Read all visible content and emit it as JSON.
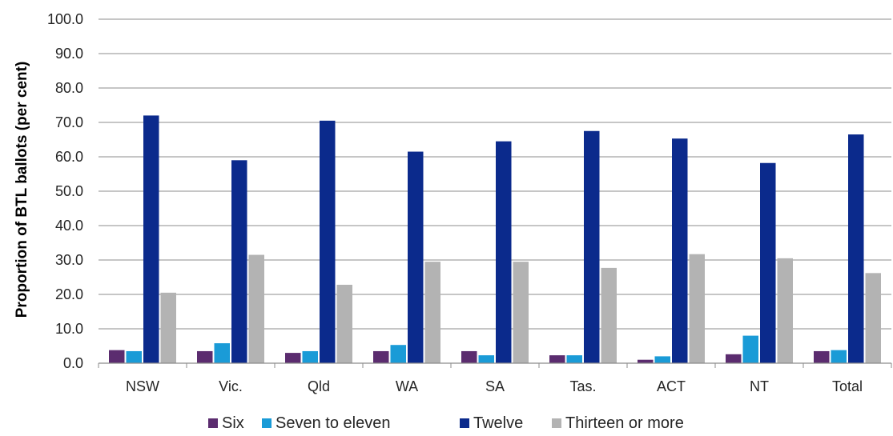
{
  "chart_data": {
    "type": "bar",
    "ylabel": "Proportion of BTL ballots (per cent)",
    "xlabel": "",
    "ylim": [
      0,
      100
    ],
    "yticks": [
      "0.0",
      "10.0",
      "20.0",
      "30.0",
      "40.0",
      "50.0",
      "60.0",
      "70.0",
      "80.0",
      "90.0",
      "100.0"
    ],
    "categories": [
      "NSW",
      "Vic.",
      "Qld",
      "WA",
      "SA",
      "Tas.",
      "ACT",
      "NT",
      "Total"
    ],
    "series": [
      {
        "name": "Six",
        "color": "#5b2c6f",
        "values": [
          3.8,
          3.5,
          3.0,
          3.5,
          3.5,
          2.3,
          1.0,
          2.6,
          3.5
        ]
      },
      {
        "name": "Seven to eleven",
        "color": "#1a9bd7",
        "values": [
          3.5,
          5.8,
          3.5,
          5.3,
          2.3,
          2.3,
          2.0,
          8.0,
          3.8
        ]
      },
      {
        "name": "Twelve",
        "color": "#0b2a8c",
        "values": [
          72.0,
          59.0,
          70.5,
          61.5,
          64.5,
          67.5,
          65.3,
          58.2,
          66.5
        ]
      },
      {
        "name": "Thirteen or more",
        "color": "#b3b3b3",
        "values": [
          20.5,
          31.5,
          22.8,
          29.5,
          29.5,
          27.7,
          31.7,
          30.5,
          26.2
        ]
      }
    ],
    "grid": true,
    "legend_position": "bottom"
  }
}
